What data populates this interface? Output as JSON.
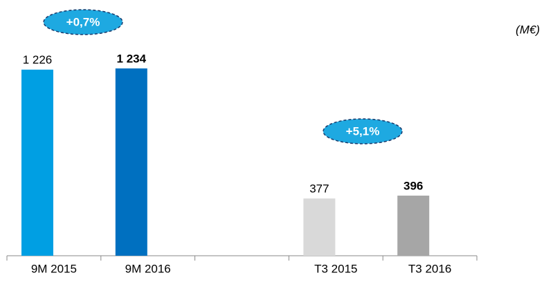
{
  "chart_data": {
    "type": "bar",
    "categories": [
      "9M 2015",
      "9M 2016",
      null,
      "T3 2015",
      "T3 2016"
    ],
    "values": [
      1226,
      1234,
      null,
      377,
      396
    ],
    "value_labels": [
      "1 226",
      "1 234",
      null,
      "377",
      "396"
    ],
    "colors": [
      "#009fe3",
      "#0070c0",
      null,
      "#d9d9d9",
      "#a6a6a6"
    ],
    "annotations": [
      "+0,7%",
      "+5,1%"
    ],
    "unit": "(M€)"
  }
}
